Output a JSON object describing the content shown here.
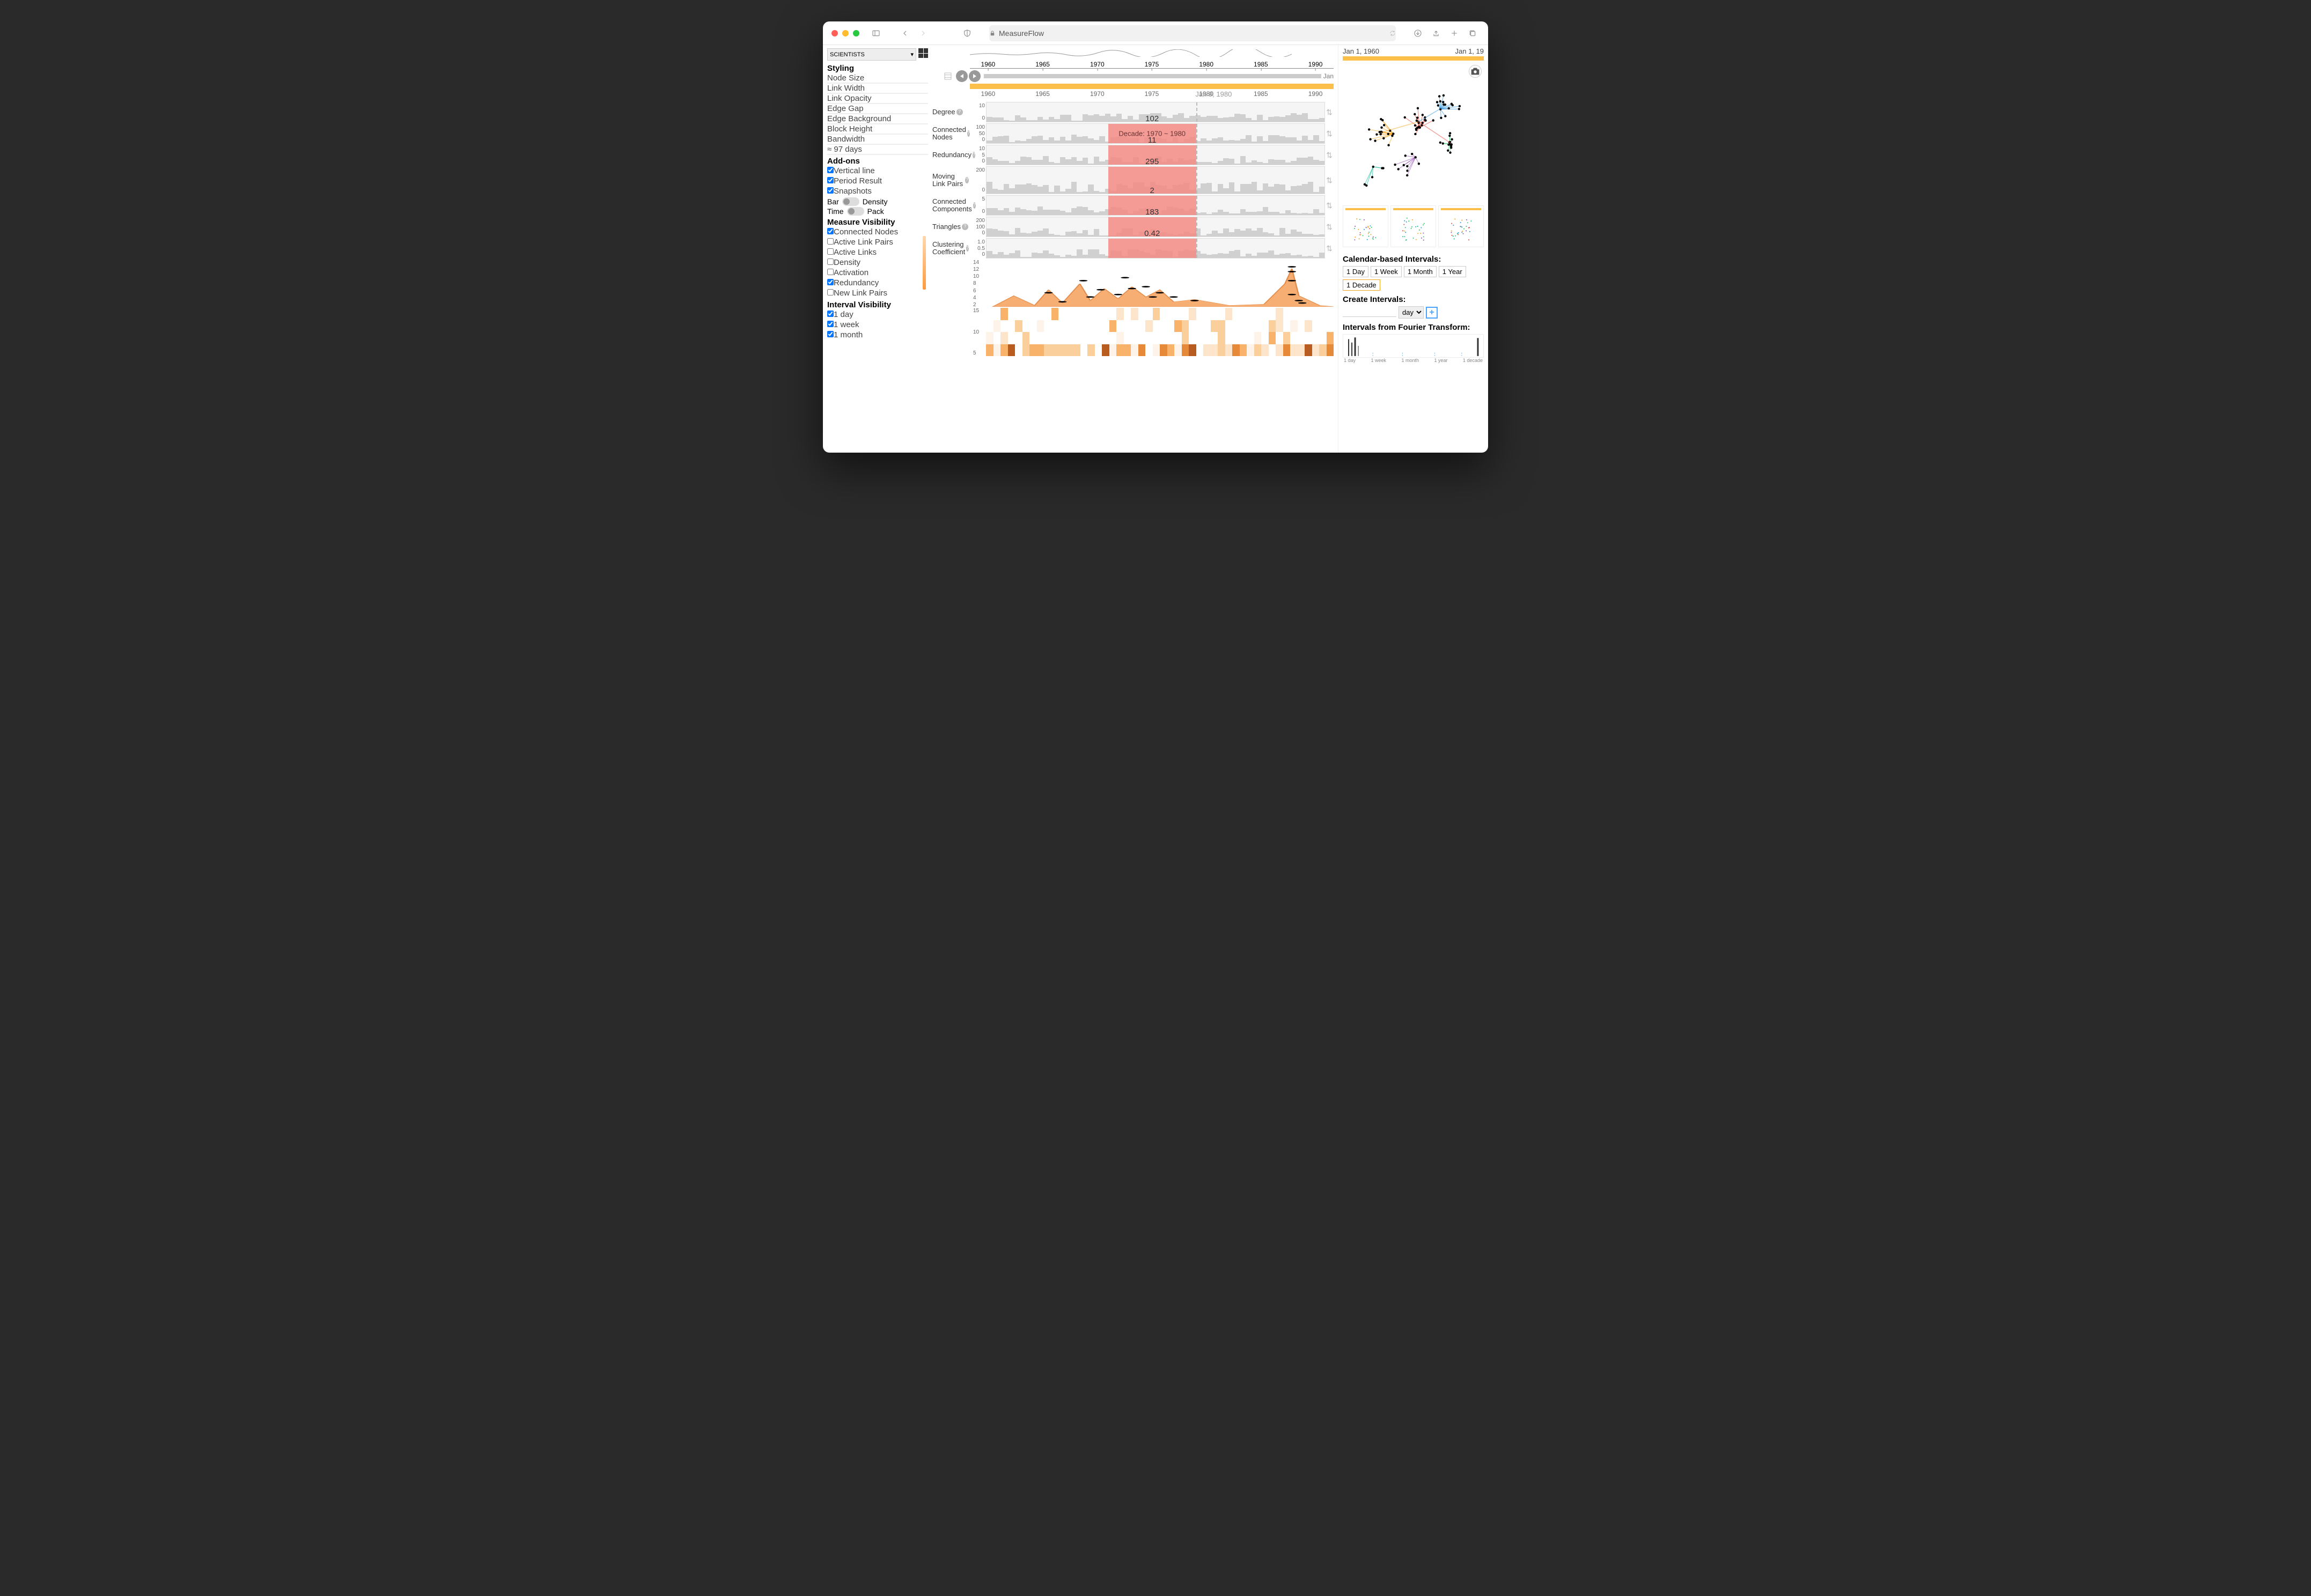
{
  "browser": {
    "title": "MeasureFlow"
  },
  "sidebar": {
    "datasetSelector": "SCIENTISTS",
    "sections": {
      "styling": {
        "heading": "Styling",
        "rows": [
          "Node Size",
          "Link Width",
          "Link Opacity",
          "Edge Gap",
          "Edge Background",
          "Block Height",
          "Bandwidth"
        ],
        "bandwidth_value": "≈ 97 days"
      },
      "addons": {
        "heading": "Add-ons",
        "items": [
          {
            "label": "Vertical line",
            "checked": true
          },
          {
            "label": "Period Result",
            "checked": true
          },
          {
            "label": "Snapshots",
            "checked": true
          }
        ],
        "toggles": [
          {
            "left": "Bar",
            "right": "Density"
          },
          {
            "left": "Time",
            "right": "Pack"
          }
        ]
      },
      "measureVis": {
        "heading": "Measure Visibility",
        "items": [
          {
            "label": "Connected Nodes",
            "checked": true
          },
          {
            "label": "Active Link Pairs",
            "checked": false
          },
          {
            "label": "Active Links",
            "checked": false
          },
          {
            "label": "Density",
            "checked": false
          },
          {
            "label": "Activation",
            "checked": false
          },
          {
            "label": "Redundancy",
            "checked": true
          },
          {
            "label": "New Link Pairs",
            "checked": false
          }
        ]
      },
      "intervalVis": {
        "heading": "Interval Visibility",
        "items": [
          {
            "label": "1 day",
            "checked": true
          },
          {
            "label": "1 week",
            "checked": true
          },
          {
            "label": "1 month",
            "checked": true
          }
        ]
      }
    }
  },
  "timeline": {
    "ticks": [
      "1960",
      "1965",
      "1970",
      "1975",
      "1980",
      "1985",
      "1990"
    ],
    "tick_positions_pct": [
      5,
      20,
      35,
      50,
      65,
      80,
      95
    ],
    "current_label": "Jan 9, 1980",
    "current_pct": 62,
    "range_end": "Jan",
    "band_color": "#fcbf49"
  },
  "measures": [
    {
      "name": "Degree",
      "axis": [
        "10",
        "0"
      ],
      "height": "short",
      "highlight": false,
      "value": "",
      "bars": []
    },
    {
      "name": "Connected Nodes",
      "axis": [
        "100",
        "50",
        "0"
      ],
      "height": "short",
      "highlight": true,
      "value": "102",
      "period_label": "Decade: 1970 ~ 1980"
    },
    {
      "name": "Redundancy",
      "axis": [
        "10",
        "5",
        "0"
      ],
      "height": "short",
      "highlight": true,
      "value": "11"
    },
    {
      "name": "Moving Link Pairs",
      "axis": [
        "200",
        "0"
      ],
      "height": "tall",
      "highlight": true,
      "value": "295"
    },
    {
      "name": "Connected Components",
      "axis": [
        "5",
        "0"
      ],
      "height": "short",
      "highlight": true,
      "value": "2"
    },
    {
      "name": "Triangles",
      "axis": [
        "200",
        "100",
        "0"
      ],
      "height": "short",
      "highlight": true,
      "value": "183"
    },
    {
      "name": "Clustering Coefficient",
      "axis": [
        "1.0",
        "0.5",
        "0"
      ],
      "height": "short",
      "highlight": true,
      "value": "0.42"
    }
  ],
  "highlight": {
    "start_pct": 36,
    "end_pct": 62,
    "color": "#f28b82"
  },
  "orange_chart": {
    "axis": [
      "14",
      "12",
      "10",
      "8",
      "6",
      "4",
      "2"
    ],
    "fill": "#f5a05a",
    "stroke": "#e07b2e",
    "dots": [
      {
        "x": 18,
        "y": 55
      },
      {
        "x": 22,
        "y": 70
      },
      {
        "x": 28,
        "y": 35
      },
      {
        "x": 30,
        "y": 62
      },
      {
        "x": 33,
        "y": 50
      },
      {
        "x": 38,
        "y": 58
      },
      {
        "x": 40,
        "y": 30
      },
      {
        "x": 42,
        "y": 48
      },
      {
        "x": 46,
        "y": 45
      },
      {
        "x": 48,
        "y": 62
      },
      {
        "x": 50,
        "y": 55
      },
      {
        "x": 54,
        "y": 62
      },
      {
        "x": 60,
        "y": 68
      },
      {
        "x": 88,
        "y": 12
      },
      {
        "x": 88,
        "y": 20
      },
      {
        "x": 88,
        "y": 35
      },
      {
        "x": 88,
        "y": 58
      },
      {
        "x": 90,
        "y": 68
      },
      {
        "x": 91,
        "y": 72
      }
    ]
  },
  "heatmap": {
    "axis": [
      "15",
      "10",
      "5"
    ],
    "rows": 4,
    "cols": 48,
    "colors": [
      "#ffffff",
      "#fef3e8",
      "#fde5cc",
      "#fbcf9c",
      "#f8b26a",
      "#e68a3a",
      "#b85c1f"
    ]
  },
  "right": {
    "date_start": "Jan 1, 1960",
    "date_end": "Jan 1, 19",
    "network": {
      "colors": [
        "#f5a623",
        "#e74c3c",
        "#3498db",
        "#2ecc71",
        "#9b59b6",
        "#1abc9c"
      ],
      "node_color": "#000"
    },
    "snapshots": 3,
    "calendar": {
      "heading": "Calendar-based Intervals:",
      "buttons": [
        {
          "label": "1 Day",
          "on": false
        },
        {
          "label": "1 Week",
          "on": false
        },
        {
          "label": "1 Month",
          "on": false
        },
        {
          "label": "1 Year",
          "on": false
        },
        {
          "label": "1 Decade",
          "on": true
        }
      ]
    },
    "create": {
      "heading": "Create Intervals:",
      "unit": "day"
    },
    "fourier": {
      "heading": "Intervals from Fourier Transform:",
      "labels": [
        "1 day",
        "1 week",
        "1 month",
        "1 year",
        "1 decade"
      ]
    }
  }
}
